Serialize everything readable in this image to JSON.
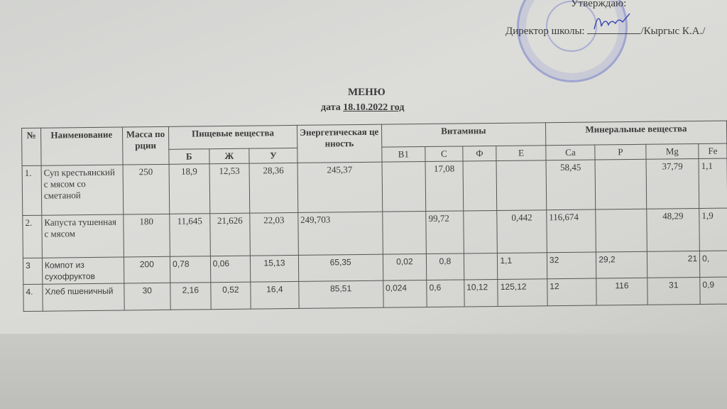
{
  "header": {
    "approve": "Утверждаю:",
    "director_label": "Директор школы:",
    "director_name": "/Кыргыс К.А./",
    "title": "МЕНЮ",
    "date_label": "дата",
    "date_value": "18.10.2022 год"
  },
  "table": {
    "columns": {
      "num": "№",
      "name": "Наименование",
      "mass": "Масса порции",
      "nutrients": "Пищевые вещества",
      "b": "Б",
      "zh": "Ж",
      "u": "У",
      "energy": "Энергетическая ценность",
      "vitamins": "Витамины",
      "b1": "В1",
      "c": "С",
      "f": "Ф",
      "e": "Е",
      "minerals": "Минеральные вещества",
      "ca": "Са",
      "p": "Р",
      "mg": "Mg",
      "fe": "Fe"
    },
    "rows": [
      {
        "num": "1.",
        "name": "Суп крестьянский с мясом со сметаной",
        "mass": "250",
        "b": "18,9",
        "zh": "12,53",
        "u": "28,36",
        "energy": "245,37",
        "b1": "",
        "c": "17,08",
        "f": "",
        "e": "",
        "ca": "58,45",
        "p": "",
        "mg": "37,79",
        "fe": "1,1"
      },
      {
        "num": "2.",
        "name": "Капуста тушенная с мясом",
        "mass": "180",
        "b": "11,645",
        "zh": "21,626",
        "u": "22,03",
        "energy": "249,703",
        "b1": "",
        "c": "99,72",
        "f": "",
        "e": "0,442",
        "ca": "116,674",
        "p": "",
        "mg": "48,29",
        "fe": "1,9"
      },
      {
        "num": "3",
        "name": "Компот из сухофруктов",
        "mass": "200",
        "b": "0,78",
        "zh": "0,06",
        "u": "15,13",
        "energy": "65,35",
        "b1": "0,02",
        "c": "0,8",
        "f": "",
        "e": "1,1",
        "ca": "32",
        "p": "29,2",
        "mg": "21",
        "fe": "0,"
      },
      {
        "num": "4.",
        "name": "Хлеб пшеничный",
        "mass": "30",
        "b": "2,16",
        "zh": "0,52",
        "u": "16,4",
        "energy": "85,51",
        "b1": "0,024",
        "c": "0,6",
        "f": "10,12",
        "e": "125,12",
        "ca": "12",
        "p": "116",
        "mg": "31",
        "fe": "0,9"
      }
    ]
  },
  "colors": {
    "paper": "#d6d6d3",
    "ink": "#3b3b3b",
    "stamp": "#6e78c8"
  }
}
